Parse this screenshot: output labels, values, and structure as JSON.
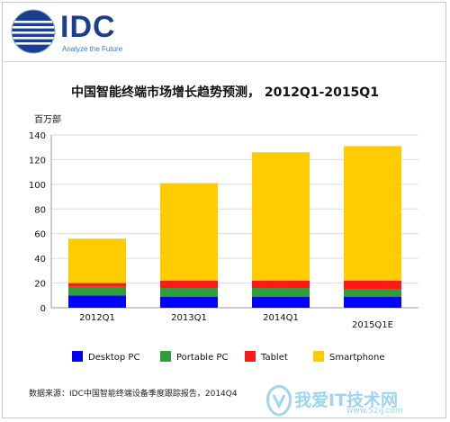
{
  "logo": {
    "brand": "IDC",
    "tagline": "Analyze the Future"
  },
  "chart_data": {
    "type": "bar",
    "stacked": true,
    "title": "中国智能终端市场增长趋势预测， 2012Q1-2015Q1",
    "ylabel": "百万部",
    "xlabel": "",
    "ylim": [
      0,
      140
    ],
    "yticks": [
      0,
      20,
      40,
      60,
      80,
      100,
      120,
      140
    ],
    "categories": [
      "2012Q1",
      "2013Q1",
      "2014Q1",
      "2015Q1E"
    ],
    "series": [
      {
        "name": "Desktop PC",
        "color": "#0000ff",
        "values": [
          10,
          9,
          9,
          9
        ]
      },
      {
        "name": "Portable PC",
        "color": "#2e9e3b",
        "values": [
          7,
          7,
          7,
          6
        ]
      },
      {
        "name": "Tablet",
        "color": "#ff1a1a",
        "values": [
          3,
          6,
          6,
          7
        ]
      },
      {
        "name": "Smartphone",
        "color": "#ffcc00",
        "values": [
          36,
          79,
          104,
          109
        ]
      }
    ],
    "grid": true,
    "legend_position": "bottom"
  },
  "source_text": "数据来源：IDC中国智能终端设备季度跟踪报告，2014Q4",
  "watermark": {
    "text": "我爱IT技术网",
    "url": "www.52ij.com"
  }
}
